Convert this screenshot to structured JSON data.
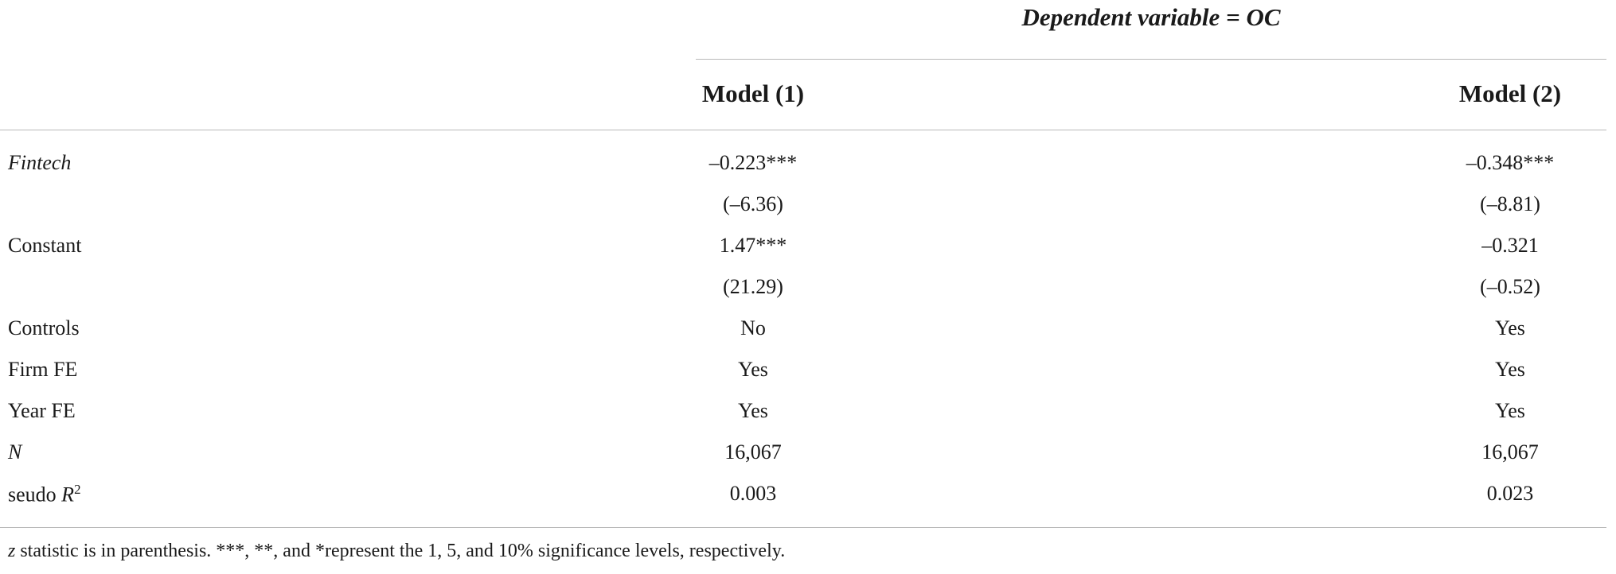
{
  "header": {
    "dependent_variable": "Dependent variable = OC"
  },
  "columns": [
    "Model (1)",
    "Model (2)"
  ],
  "rows": [
    {
      "label": "Fintech",
      "italic": true,
      "cells": [
        "–0.223***",
        "–0.348***"
      ]
    },
    {
      "label": null,
      "cells": [
        "(–6.36)",
        "(–8.81)"
      ]
    },
    {
      "label": "Constant",
      "cells": [
        "1.47***",
        "–0.321"
      ]
    },
    {
      "label": null,
      "cells": [
        "(21.29)",
        "(–0.52)"
      ]
    },
    {
      "label": "Controls",
      "cells": [
        "No",
        "Yes"
      ]
    },
    {
      "label": "Firm FE",
      "cells": [
        "Yes",
        "Yes"
      ]
    },
    {
      "label": "Year FE",
      "cells": [
        "Yes",
        "Yes"
      ]
    },
    {
      "label": "N",
      "italic": true,
      "cells": [
        "16,067",
        "16,067"
      ]
    },
    {
      "label": "seudo ",
      "label_var": "R",
      "label_sup": "2",
      "cells": [
        "0.003",
        "0.023"
      ]
    }
  ],
  "footnote": {
    "var": "z",
    "text": " statistic is in parenthesis. ***, **, and *represent the 1, 5, and 10% significance levels, respectively."
  }
}
